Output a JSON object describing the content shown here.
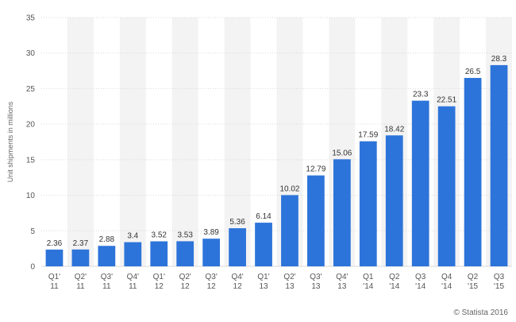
{
  "chart_data": {
    "type": "bar",
    "ylabel": "Unit shipments in millions",
    "ylim": [
      0,
      35
    ],
    "yticks": [
      0,
      5,
      10,
      15,
      20,
      25,
      30,
      35
    ],
    "grid": true,
    "categories": [
      [
        "Q1'",
        "11"
      ],
      [
        "Q2'",
        "11"
      ],
      [
        "Q3'",
        "11"
      ],
      [
        "Q4'",
        "11"
      ],
      [
        "Q1'",
        "12"
      ],
      [
        "Q2'",
        "12"
      ],
      [
        "Q3'",
        "12"
      ],
      [
        "Q4'",
        "12"
      ],
      [
        "Q1'",
        "13"
      ],
      [
        "Q2'",
        "13"
      ],
      [
        "Q3'",
        "13"
      ],
      [
        "Q4'",
        "13"
      ],
      [
        "Q1",
        "'14"
      ],
      [
        "Q2",
        "'14"
      ],
      [
        "Q3",
        "'14"
      ],
      [
        "Q4",
        "'14"
      ],
      [
        "Q2",
        "'15"
      ],
      [
        "Q3",
        "'15"
      ]
    ],
    "values": [
      2.36,
      2.37,
      2.88,
      3.4,
      3.52,
      3.53,
      3.89,
      5.36,
      6.14,
      10.02,
      12.79,
      15.06,
      17.59,
      18.42,
      23.3,
      22.51,
      26.5,
      28.3
    ],
    "value_labels": [
      "2.36",
      "2.37",
      "2.88",
      "3.4",
      "3.52",
      "3.53",
      "3.89",
      "5.36",
      "6.14",
      "10.02",
      "12.79",
      "15.06",
      "17.59",
      "18.42",
      "23.3",
      "22.51",
      "26.5",
      "28.3"
    ],
    "bar_color": "#2d74da",
    "band_color": "#f3f3f3",
    "grid_color": "#d9d9d9"
  },
  "credit": "© Statista 2016"
}
